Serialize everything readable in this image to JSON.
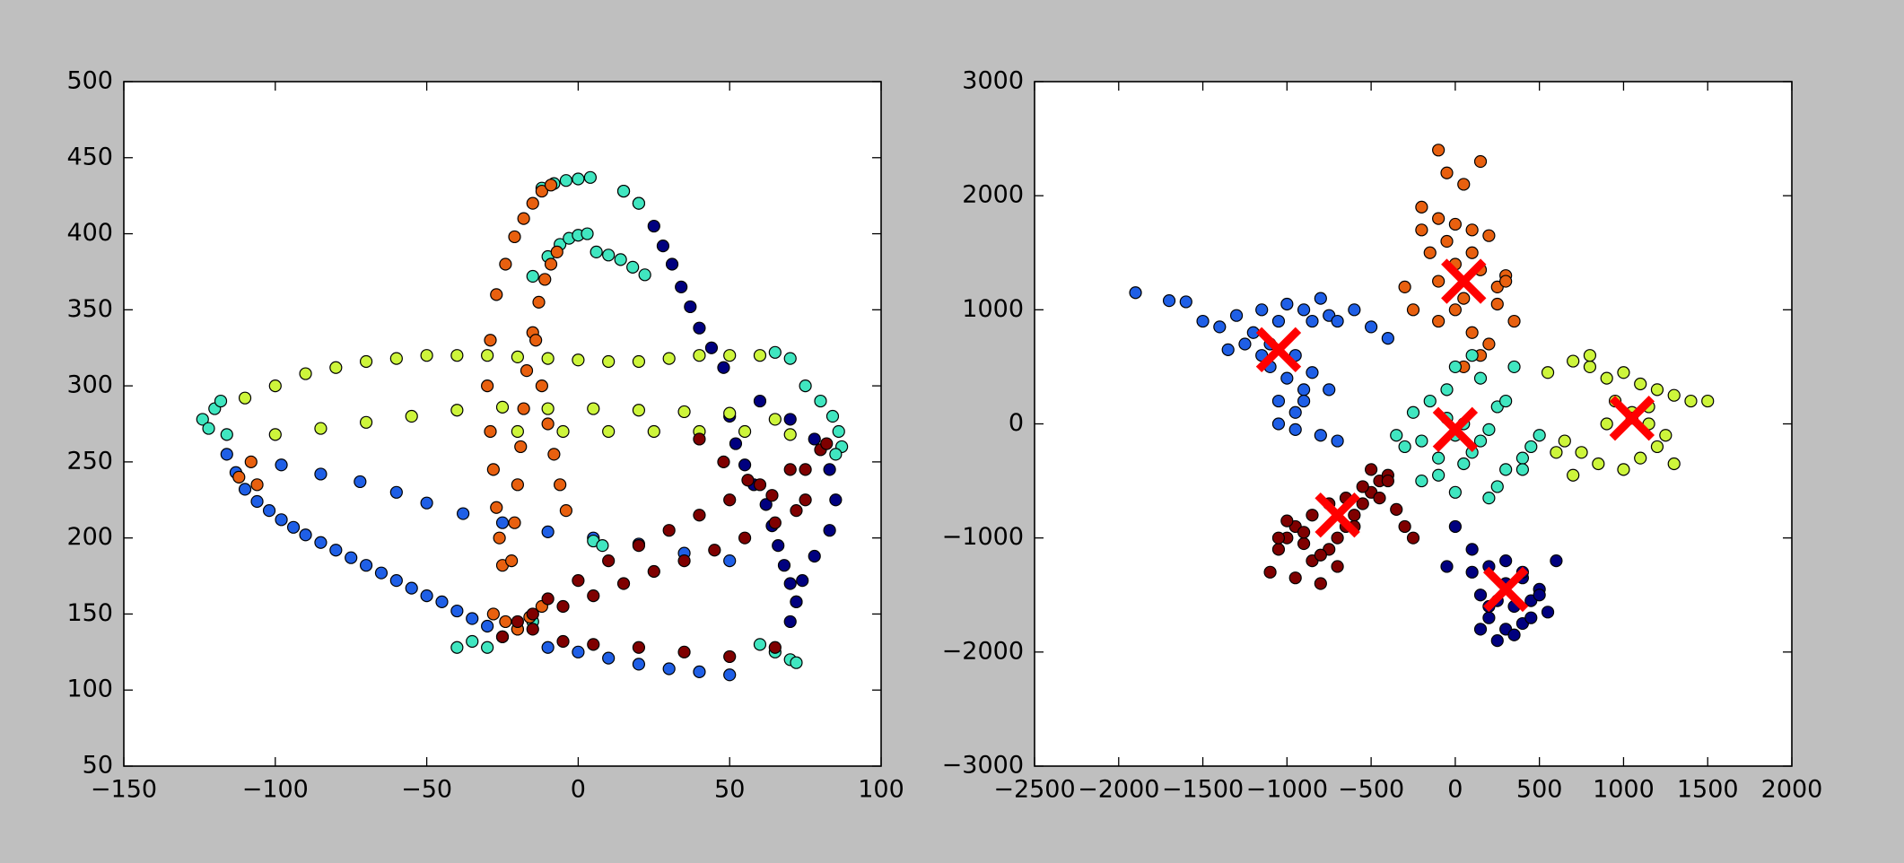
{
  "chart_data": [
    {
      "type": "scatter",
      "xlim": [
        -150,
        100
      ],
      "xticks": [
        {
          "value": -150,
          "label": "−150"
        },
        {
          "value": -100,
          "label": "−100"
        },
        {
          "value": -50,
          "label": "−50"
        },
        0,
        50,
        100
      ],
      "ylim": [
        50,
        500
      ],
      "yticks": [
        50,
        100,
        150,
        200,
        250,
        300,
        350,
        400,
        450,
        500
      ],
      "series": [
        {
          "color": "#00007f",
          "x": [
            15,
            20,
            25,
            28,
            31,
            34,
            37,
            40,
            44,
            48,
            60,
            70,
            78,
            83,
            85,
            83,
            78,
            74,
            72,
            70,
            50,
            52,
            55,
            58,
            62,
            64,
            66,
            68,
            70,
            72
          ],
          "values": [
            428,
            420,
            405,
            392,
            380,
            365,
            352,
            338,
            325,
            312,
            290,
            278,
            265,
            245,
            225,
            205,
            188,
            172,
            158,
            145,
            280,
            262,
            248,
            235,
            222,
            208,
            195,
            182,
            170,
            158
          ]
        },
        {
          "color": "#1f5fe6",
          "x": [
            -116,
            -113,
            -110,
            -106,
            -102,
            -98,
            -94,
            -90,
            -85,
            -80,
            -75,
            -70,
            -65,
            -60,
            -55,
            -50,
            -45,
            -40,
            -35,
            -30,
            -10,
            0,
            10,
            20,
            30,
            40,
            50,
            -98,
            -85,
            -72,
            -60,
            -50,
            -38,
            -25,
            -10,
            5,
            20,
            35,
            50
          ],
          "values": [
            255,
            243,
            232,
            224,
            218,
            212,
            207,
            202,
            197,
            192,
            187,
            182,
            177,
            172,
            167,
            162,
            158,
            152,
            147,
            142,
            128,
            125,
            121,
            117,
            114,
            112,
            110,
            248,
            242,
            237,
            230,
            223,
            216,
            210,
            204,
            200,
            196,
            190,
            185
          ]
        },
        {
          "color": "#40e6c0",
          "x": [
            -12,
            -8,
            -4,
            0,
            4,
            15,
            20,
            -15,
            -10,
            -6,
            -3,
            0,
            3,
            6,
            10,
            14,
            18,
            22,
            -124,
            -122,
            -120,
            -118,
            -116,
            65,
            70,
            75,
            80,
            84,
            86,
            87,
            85,
            -40,
            -35,
            -30,
            -25,
            -20,
            -15,
            60,
            65,
            70,
            72,
            5,
            8
          ],
          "values": [
            430,
            433,
            435,
            436,
            437,
            428,
            420,
            372,
            385,
            393,
            397,
            399,
            400,
            388,
            386,
            383,
            378,
            373,
            278,
            272,
            285,
            290,
            268,
            322,
            318,
            300,
            290,
            280,
            270,
            260,
            255,
            128,
            132,
            128,
            135,
            140,
            145,
            130,
            125,
            120,
            118,
            198,
            195
          ]
        },
        {
          "color": "#cdf53b",
          "x": [
            -110,
            -100,
            -90,
            -80,
            -70,
            -60,
            -50,
            -40,
            -30,
            -20,
            -10,
            0,
            10,
            20,
            30,
            40,
            50,
            60,
            -100,
            -85,
            -70,
            -55,
            -40,
            -25,
            -10,
            5,
            20,
            35,
            50,
            65,
            -20,
            -5,
            10,
            25,
            40,
            55,
            70
          ],
          "values": [
            292,
            300,
            308,
            312,
            316,
            318,
            320,
            320,
            320,
            319,
            318,
            317,
            316,
            316,
            318,
            320,
            320,
            320,
            268,
            272,
            276,
            280,
            284,
            286,
            285,
            285,
            284,
            283,
            282,
            278,
            270,
            270,
            270,
            270,
            270,
            270,
            268
          ]
        },
        {
          "color": "#e8600f",
          "x": [
            -25,
            -26,
            -27,
            -28,
            -29,
            -30,
            -29,
            -27,
            -24,
            -21,
            -18,
            -15,
            -12,
            -9,
            -22,
            -21,
            -20,
            -19,
            -18,
            -17,
            -15,
            -13,
            -11,
            -9,
            -7,
            -14,
            -12,
            -10,
            -8,
            -6,
            -4,
            -112,
            -108,
            -106,
            -28,
            -24,
            -20,
            -16,
            -12
          ],
          "values": [
            182,
            200,
            220,
            245,
            270,
            300,
            330,
            360,
            380,
            398,
            410,
            420,
            428,
            432,
            185,
            210,
            235,
            260,
            285,
            310,
            335,
            355,
            370,
            380,
            388,
            330,
            300,
            275,
            255,
            235,
            218,
            240,
            250,
            235,
            150,
            145,
            140,
            148,
            155
          ]
        },
        {
          "color": "#7f0000",
          "x": [
            -20,
            -10,
            0,
            10,
            20,
            30,
            40,
            50,
            60,
            70,
            80,
            -15,
            -5,
            5,
            15,
            25,
            35,
            45,
            55,
            65,
            75,
            -25,
            -15,
            -5,
            5,
            20,
            35,
            50,
            65,
            75,
            82,
            40,
            48,
            56,
            64,
            72
          ],
          "values": [
            145,
            160,
            172,
            185,
            195,
            205,
            215,
            225,
            235,
            245,
            258,
            150,
            155,
            162,
            170,
            178,
            185,
            192,
            200,
            210,
            225,
            135,
            140,
            132,
            130,
            128,
            125,
            122,
            128,
            245,
            262,
            265,
            250,
            238,
            228,
            218
          ]
        }
      ]
    },
    {
      "type": "scatter",
      "xlim": [
        -2500,
        2000
      ],
      "xticks": [
        {
          "value": -2500,
          "label": "−2500"
        },
        {
          "value": -2000,
          "label": "−2000"
        },
        {
          "value": -1500,
          "label": "−1500"
        },
        {
          "value": -1000,
          "label": "−1000"
        },
        {
          "value": -500,
          "label": "−500"
        },
        0,
        500,
        1000,
        1500,
        2000
      ],
      "ylim": [
        -3000,
        3000
      ],
      "yticks": [
        {
          "value": -3000,
          "label": "−3000"
        },
        {
          "value": -2000,
          "label": "−2000"
        },
        {
          "value": -1000,
          "label": "−1000"
        },
        0,
        1000,
        2000,
        3000
      ],
      "series": [
        {
          "color": "#1f5fe6",
          "x": [
            -1900,
            -1700,
            -1600,
            -1500,
            -1400,
            -1300,
            -1200,
            -1150,
            -1100,
            -1050,
            -1000,
            -950,
            -900,
            -850,
            -800,
            -750,
            -700,
            -600,
            -500,
            -400,
            -1100,
            -1000,
            -900,
            -1050,
            -950,
            -1150,
            -1250,
            -1350,
            -850,
            -750,
            -1050,
            -950,
            -900,
            -800,
            -700
          ],
          "values": [
            1150,
            1080,
            1070,
            900,
            850,
            950,
            800,
            1000,
            700,
            900,
            1050,
            600,
            1000,
            900,
            1100,
            950,
            900,
            1000,
            850,
            750,
            500,
            400,
            300,
            200,
            100,
            600,
            700,
            650,
            450,
            300,
            0,
            -50,
            200,
            -100,
            -150
          ]
        },
        {
          "color": "#e8600f",
          "x": [
            -100,
            -50,
            50,
            150,
            -200,
            -100,
            0,
            100,
            200,
            -300,
            -150,
            0,
            150,
            300,
            -50,
            50,
            250,
            -250,
            -100,
            100,
            200,
            350,
            0,
            -100,
            150,
            50,
            250,
            100,
            -200,
            300
          ],
          "values": [
            2400,
            2200,
            2100,
            2300,
            1900,
            1800,
            1750,
            1700,
            1650,
            1200,
            1500,
            1400,
            1350,
            1300,
            1600,
            1100,
            1200,
            1000,
            900,
            800,
            700,
            900,
            1000,
            1250,
            600,
            500,
            1050,
            1500,
            1700,
            1250
          ]
        },
        {
          "color": "#40e6c0",
          "x": [
            -300,
            -200,
            -100,
            0,
            100,
            200,
            300,
            400,
            500,
            -250,
            -150,
            -50,
            50,
            150,
            250,
            350,
            450,
            -350,
            -200,
            0,
            200,
            400,
            100,
            -100,
            300,
            50,
            -50,
            150,
            250,
            0
          ],
          "values": [
            -200,
            -150,
            -300,
            -100,
            -250,
            -50,
            -400,
            -300,
            -100,
            100,
            200,
            300,
            0,
            400,
            150,
            500,
            -200,
            -100,
            -500,
            -600,
            -650,
            -400,
            600,
            -450,
            200,
            -350,
            50,
            -150,
            -550,
            500
          ]
        },
        {
          "color": "#cdf53b",
          "x": [
            550,
            700,
            800,
            900,
            1000,
            1100,
            1200,
            1300,
            1400,
            1500,
            950,
            1050,
            1150,
            1250,
            650,
            750,
            850,
            1000,
            1100,
            1200,
            1300,
            900,
            1050,
            1150,
            600,
            700,
            800
          ],
          "values": [
            450,
            550,
            500,
            400,
            450,
            350,
            300,
            250,
            200,
            200,
            200,
            100,
            0,
            -100,
            -150,
            -250,
            -350,
            -400,
            -300,
            -200,
            -350,
            0,
            50,
            150,
            -250,
            -450,
            600
          ]
        },
        {
          "color": "#7f0000",
          "x": [
            -1100,
            -1050,
            -1000,
            -950,
            -900,
            -850,
            -800,
            -750,
            -700,
            -650,
            -600,
            -550,
            -500,
            -450,
            -400,
            -1000,
            -900,
            -800,
            -700,
            -600,
            -1050,
            -950,
            -850,
            -750,
            -650,
            -550,
            -450,
            -350,
            -300,
            -250,
            -500,
            -400
          ],
          "values": [
            -1300,
            -1100,
            -1000,
            -900,
            -1050,
            -1200,
            -1400,
            -1100,
            -1000,
            -900,
            -800,
            -700,
            -600,
            -500,
            -450,
            -850,
            -950,
            -1150,
            -1250,
            -900,
            -1000,
            -1350,
            -800,
            -700,
            -650,
            -550,
            -650,
            -750,
            -900,
            -1000,
            -400,
            -500
          ]
        },
        {
          "color": "#00007f",
          "x": [
            100,
            200,
            300,
            400,
            500,
            150,
            250,
            350,
            450,
            550,
            200,
            300,
            400,
            250,
            350,
            -50,
            0,
            100,
            500,
            600,
            300,
            200,
            400,
            150,
            450
          ],
          "values": [
            -1300,
            -1250,
            -1200,
            -1350,
            -1450,
            -1500,
            -1550,
            -1600,
            -1550,
            -1650,
            -1700,
            -1800,
            -1750,
            -1900,
            -1850,
            -1250,
            -900,
            -1100,
            -1500,
            -1200,
            -1400,
            -1600,
            -1300,
            -1800,
            -1700
          ]
        },
        {
          "color": "#ff0000",
          "marker": "x",
          "x": [
            -1050,
            50,
            1050,
            0,
            -700,
            300
          ],
          "values": [
            650,
            1250,
            50,
            -50,
            -800,
            -1450
          ]
        }
      ]
    }
  ]
}
